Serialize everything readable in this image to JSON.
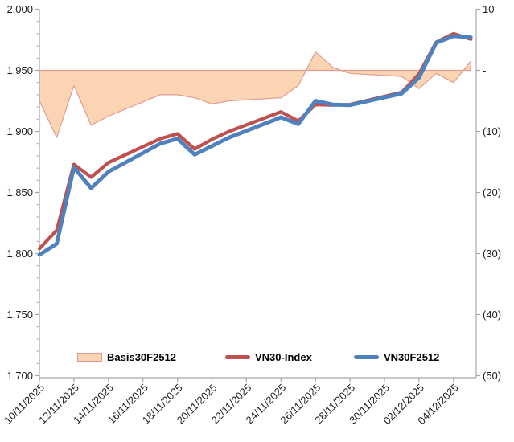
{
  "chart_data": {
    "type": "area+line",
    "title": "",
    "dates": [
      "10/11/2025",
      "11/11/2025",
      "12/11/2025",
      "13/11/2025",
      "14/11/2025",
      "17/11/2025",
      "18/11/2025",
      "19/11/2025",
      "20/11/2025",
      "21/11/2025",
      "24/11/2025",
      "25/11/2025",
      "26/11/2025",
      "27/11/2025",
      "28/11/2025",
      "01/12/2025",
      "02/12/2025",
      "03/12/2025",
      "04/12/2025",
      "05/12/2025"
    ],
    "day_offsets": [
      0,
      1,
      2,
      3,
      4,
      7,
      8,
      9,
      10,
      11,
      14,
      15,
      16,
      17,
      18,
      21,
      22,
      23,
      24,
      25
    ],
    "series": [
      {
        "name": "Basis30F2512",
        "type": "area",
        "axis": "right",
        "fill": "#FBD4B4",
        "stroke": "#E29B91",
        "values": [
          -5,
          -11,
          -2.5,
          -9,
          -7.5,
          -4,
          -4,
          -4.5,
          -5.5,
          -5,
          -4.5,
          -2.5,
          3,
          0.5,
          -0.5,
          -1,
          -3,
          -0.5,
          -2,
          1.5
        ]
      },
      {
        "name": "VN30-Index",
        "type": "line",
        "axis": "left",
        "color": "#C0504D",
        "values": [
          1804,
          1819,
          1873,
          1862.5,
          1874.5,
          1894,
          1898,
          1885.5,
          1893.5,
          1900,
          1916,
          1908.5,
          1922,
          1921.5,
          1922,
          1932,
          1947,
          1973,
          1980,
          1975.5
        ]
      },
      {
        "name": "VN30F2512",
        "type": "line",
        "axis": "left",
        "color": "#4F81BD",
        "values": [
          1799,
          1808,
          1870.5,
          1853.5,
          1867,
          1890,
          1894,
          1881,
          1888,
          1895,
          1911.5,
          1906,
          1925,
          1922,
          1921.5,
          1931,
          1944,
          1972.5,
          1978,
          1977
        ]
      }
    ],
    "left_axis": {
      "min": 1700,
      "max": 2000,
      "major_step": 50,
      "minor_step": 10,
      "labels": [
        "2,000",
        "1,950",
        "1,900",
        "1,850",
        "1,800",
        "1,750",
        "1,700"
      ]
    },
    "right_axis": {
      "min": -50,
      "max": 10,
      "major_step": 10,
      "zero_at_left_value": 1950,
      "labels": [
        "10",
        "-",
        "(10)",
        "(20)",
        "(30)",
        "(40)",
        "(50)"
      ]
    },
    "x_axis": {
      "tick_day_offsets": [
        0,
        2,
        4,
        6,
        8,
        10,
        12,
        14,
        16,
        18,
        20,
        22,
        24
      ],
      "tick_labels": [
        "10/11/2025",
        "12/11/2025",
        "14/11/2025",
        "16/11/2025",
        "18/11/2025",
        "20/11/2025",
        "22/11/2025",
        "24/11/2025",
        "26/11/2025",
        "28/11/2025",
        "30/11/2025",
        "02/12/2025",
        "04/12/2025"
      ]
    },
    "legend_position": "bottom-inside",
    "grid": "off",
    "axis_color": "#A6A6A6"
  }
}
